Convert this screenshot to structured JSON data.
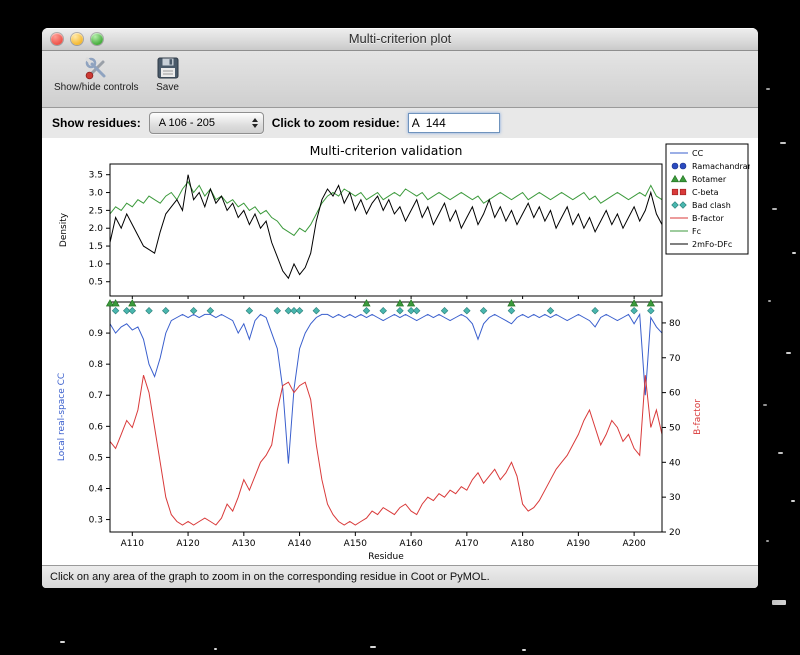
{
  "window": {
    "title": "Multi-criterion plot"
  },
  "toolbar": {
    "show_hide_label": "Show/hide controls",
    "save_label": "Save"
  },
  "controls": {
    "show_residues_label": "Show residues:",
    "residue_range_value": "A 106 - 205",
    "zoom_label": "Click to zoom residue:",
    "zoom_value": "A  144"
  },
  "status_bar": {
    "text": "Click on any area of the graph to zoom in on the corresponding residue in Coot or PyMOL."
  },
  "colors": {
    "cc_blue": "#3a5fcd",
    "green": "#3c9a3c",
    "red": "#d93a3a",
    "teal": "#49b6ae",
    "black": "#000000"
  },
  "legend": {
    "entries": [
      {
        "label": "CC",
        "type": "line",
        "color": "#3a5fcd"
      },
      {
        "label": "Ramachandran",
        "type": "circle",
        "color": "#2b4bbf",
        "edge": "#1a2f8a"
      },
      {
        "label": "Rotamer",
        "type": "triangle",
        "color": "#3c9a3c",
        "edge": "#1e6e1e"
      },
      {
        "label": "C-beta",
        "type": "square",
        "color": "#d93a3a",
        "edge": "#9c1f1f"
      },
      {
        "label": "Bad clash",
        "type": "diamond",
        "color": "#49b6ae",
        "edge": "#2a7d77"
      },
      {
        "label": "B-factor",
        "type": "line",
        "color": "#d93a3a"
      },
      {
        "label": "Fc",
        "type": "line",
        "color": "#3c9a3c"
      },
      {
        "label": "2mFo-DFc",
        "type": "line",
        "color": "#000000"
      }
    ]
  },
  "chart_data": [
    {
      "id": "density_plot",
      "type": "line",
      "title": "Multi-criterion validation",
      "ylabel": "Density",
      "x_range": [
        106,
        205
      ],
      "ylim": [
        0.1,
        3.8
      ],
      "yticks": [
        0.5,
        1.0,
        1.5,
        2.0,
        2.5,
        3.0,
        3.5
      ],
      "series": [
        {
          "name": "Fc",
          "color": "#3c9a3c",
          "values": [
            2.4,
            2.6,
            2.5,
            2.7,
            2.6,
            2.8,
            2.7,
            2.9,
            2.8,
            2.7,
            2.9,
            3.0,
            2.8,
            3.1,
            3.3,
            3.0,
            3.2,
            2.9,
            3.1,
            2.8,
            2.9,
            2.7,
            2.8,
            2.6,
            2.7,
            2.5,
            2.6,
            2.4,
            2.5,
            2.3,
            2.2,
            2.0,
            1.9,
            1.8,
            2.0,
            1.9,
            2.1,
            2.4,
            2.7,
            2.9,
            3.0,
            2.9,
            3.1,
            3.0,
            2.9,
            3.0,
            2.8,
            2.9,
            3.0,
            2.8,
            2.9,
            3.0,
            2.9,
            3.1,
            3.0,
            2.9,
            3.0,
            2.8,
            2.9,
            3.0,
            2.9,
            2.8,
            2.9,
            3.0,
            2.9,
            2.8,
            2.9,
            2.7,
            2.8,
            2.9,
            3.0,
            2.9,
            2.8,
            2.9,
            3.0,
            2.8,
            2.9,
            3.0,
            2.9,
            2.8,
            2.9,
            3.0,
            2.9,
            2.8,
            2.9,
            3.0,
            2.8,
            2.9,
            2.7,
            2.8,
            2.9,
            3.0,
            2.9,
            2.8,
            2.9,
            3.0,
            2.9,
            3.2,
            2.9,
            2.8
          ]
        },
        {
          "name": "2mFo-DFc",
          "color": "#000000",
          "values": [
            1.6,
            2.3,
            2.0,
            2.4,
            2.1,
            1.8,
            1.5,
            1.4,
            1.3,
            1.9,
            2.4,
            2.6,
            2.8,
            2.5,
            3.5,
            2.8,
            3.0,
            2.6,
            3.1,
            2.7,
            2.9,
            2.5,
            2.7,
            2.3,
            2.5,
            2.1,
            2.4,
            2.0,
            2.2,
            1.6,
            1.2,
            0.8,
            0.6,
            1.0,
            0.7,
            0.9,
            1.3,
            2.2,
            2.8,
            3.1,
            2.9,
            3.2,
            2.7,
            3.0,
            2.5,
            2.8,
            2.4,
            2.7,
            2.9,
            2.5,
            2.8,
            2.4,
            2.6,
            2.2,
            2.5,
            2.8,
            2.3,
            2.6,
            2.1,
            2.4,
            2.7,
            2.2,
            2.5,
            2.0,
            2.3,
            2.6,
            2.1,
            2.4,
            2.8,
            2.3,
            2.6,
            2.2,
            2.5,
            2.1,
            2.4,
            2.7,
            2.3,
            2.6,
            2.2,
            2.5,
            2.0,
            2.3,
            2.6,
            2.1,
            2.4,
            2.0,
            2.3,
            1.9,
            2.2,
            2.5,
            2.1,
            2.4,
            2.0,
            2.3,
            2.6,
            2.2,
            2.5,
            3.0,
            2.4,
            2.1
          ]
        }
      ]
    },
    {
      "id": "cc_bfactor_plot",
      "type": "line",
      "xlabel": "Residue",
      "ylabel_left": "Local real-space CC",
      "ylabel_right": "B-factor",
      "x_range": [
        106,
        205
      ],
      "xticks": [
        110,
        120,
        130,
        140,
        150,
        160,
        170,
        180,
        190,
        200
      ],
      "xtick_labels": [
        "A110",
        "A120",
        "A130",
        "A140",
        "A150",
        "A160",
        "A170",
        "A180",
        "A190",
        "A200"
      ],
      "ylim_left": [
        0.26,
        1.0
      ],
      "yticks_left": [
        0.3,
        0.4,
        0.5,
        0.6,
        0.7,
        0.8,
        0.9
      ],
      "ylim_right": [
        20,
        86
      ],
      "yticks_right": [
        20,
        30,
        40,
        50,
        60,
        70,
        80
      ],
      "series": [
        {
          "name": "CC",
          "axis": "left",
          "color": "#3a5fcd",
          "values": [
            0.93,
            0.9,
            0.92,
            0.93,
            0.91,
            0.92,
            0.88,
            0.8,
            0.76,
            0.82,
            0.9,
            0.94,
            0.95,
            0.96,
            0.95,
            0.96,
            0.95,
            0.96,
            0.96,
            0.95,
            0.96,
            0.95,
            0.94,
            0.9,
            0.93,
            0.88,
            0.94,
            0.96,
            0.95,
            0.9,
            0.85,
            0.72,
            0.48,
            0.72,
            0.85,
            0.9,
            0.93,
            0.95,
            0.96,
            0.96,
            0.95,
            0.96,
            0.95,
            0.96,
            0.95,
            0.96,
            0.95,
            0.96,
            0.95,
            0.94,
            0.95,
            0.96,
            0.95,
            0.96,
            0.95,
            0.94,
            0.95,
            0.96,
            0.95,
            0.96,
            0.95,
            0.94,
            0.95,
            0.96,
            0.95,
            0.93,
            0.88,
            0.93,
            0.95,
            0.96,
            0.95,
            0.94,
            0.93,
            0.95,
            0.96,
            0.95,
            0.96,
            0.95,
            0.96,
            0.95,
            0.96,
            0.95,
            0.94,
            0.95,
            0.96,
            0.95,
            0.94,
            0.92,
            0.95,
            0.96,
            0.95,
            0.94,
            0.95,
            0.96,
            0.93,
            0.96,
            0.7,
            0.95,
            0.92,
            0.9
          ]
        },
        {
          "name": "B-factor",
          "axis": "right",
          "color": "#d93a3a",
          "values": [
            46,
            44,
            48,
            52,
            50,
            55,
            65,
            60,
            50,
            40,
            30,
            25,
            23,
            22,
            23,
            22,
            23,
            24,
            23,
            22,
            24,
            28,
            26,
            30,
            35,
            32,
            36,
            40,
            42,
            45,
            55,
            62,
            63,
            60,
            62,
            63,
            58,
            45,
            35,
            28,
            25,
            23,
            22,
            23,
            22,
            23,
            24,
            26,
            25,
            27,
            26,
            25,
            27,
            28,
            26,
            25,
            28,
            30,
            29,
            31,
            30,
            32,
            31,
            33,
            32,
            35,
            37,
            34,
            36,
            38,
            35,
            37,
            40,
            36,
            28,
            26,
            27,
            29,
            32,
            35,
            38,
            40,
            42,
            45,
            48,
            52,
            55,
            50,
            45,
            48,
            52,
            50,
            46,
            48,
            44,
            42,
            65,
            50,
            55,
            48
          ]
        }
      ],
      "markers": [
        {
          "name": "Bad clash",
          "shape": "diamond",
          "color": "#49b6ae",
          "edge": "#2a7d77",
          "y": 0.972,
          "residues": [
            107,
            109,
            110,
            113,
            116,
            121,
            124,
            131,
            136,
            138,
            139,
            140,
            143,
            152,
            155,
            158,
            160,
            161,
            166,
            170,
            173,
            178,
            185,
            193,
            200,
            203
          ]
        },
        {
          "name": "Rotamer",
          "shape": "triangle",
          "color": "#3c9a3c",
          "edge": "#1e6e1e",
          "y": 0.996,
          "residues": [
            106,
            107,
            110,
            152,
            158,
            160,
            178,
            200,
            203
          ]
        }
      ]
    }
  ]
}
